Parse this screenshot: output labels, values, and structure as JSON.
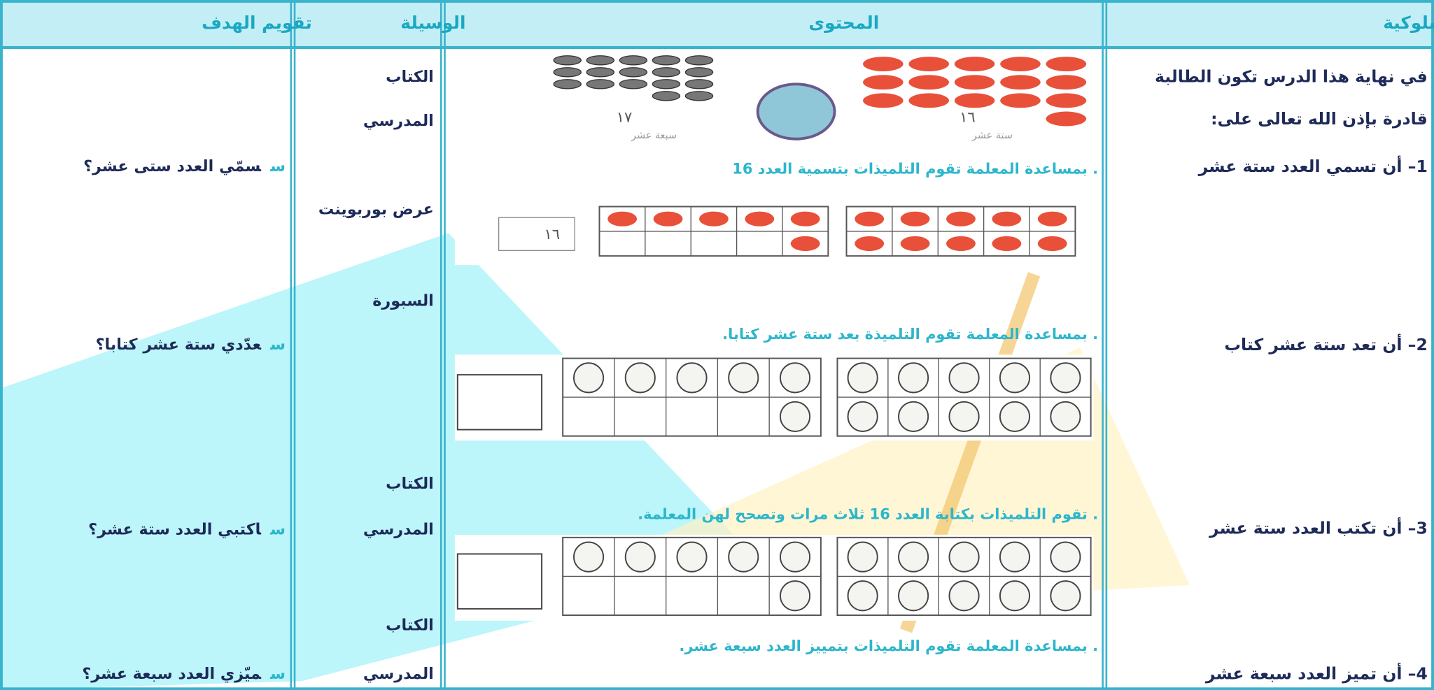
{
  "table": {
    "headers": [
      "الأهداف الإجرائية السلوكية",
      "المحتوى",
      "الوسيلة",
      "تقويم الهدف"
    ],
    "objectives": {
      "intro": [
        "في نهاية هذا الدرس تكون الطالبة",
        "قادرة بإذن الله تعالى على:"
      ],
      "items": [
        "1– أن تسمي العدد ستة عشر",
        "2– أن تعد ستة عشر كتاب",
        "3– أن تكتب العدد ستة عشر",
        "4– أن تميز العدد سبعة عشر"
      ]
    },
    "content": [
      ". بمساعدة المعلمة تقوم التلميذات بتسمية العدد 16",
      ". بمساعدة المعلمة تقوم التلميذة بعد ستة عشر كتابا.",
      ". تقوم التلميذات بكتابة العدد 16 ثلاث مرات وتصحح لهن المعلمة.",
      ". بمساعدة المعلمة تقوم التلميذات بتمييز العدد سبعة عشر."
    ],
    "content_images": {
      "captions": [
        {
          "numeral": "١٦",
          "words": "ستة عشر"
        },
        {
          "numeral": "١٧",
          "words": "سبعة عشر"
        }
      ],
      "answer_numeral": "١٦"
    },
    "tools": [
      "الكتاب",
      "المدرسي",
      "عرض بوربوينت",
      "السبورة",
      "الكتاب",
      "المدرسي",
      "الكتاب",
      "المدرسي"
    ],
    "evaluation": {
      "marker": "س",
      "questions": [
        "سمّي العدد ستى عشر؟",
        "عدّدي ستة عشر كتابا؟",
        "اكتبي العدد ستة عشر؟",
        "ميّزي العدد سبعة عشر؟"
      ]
    }
  }
}
